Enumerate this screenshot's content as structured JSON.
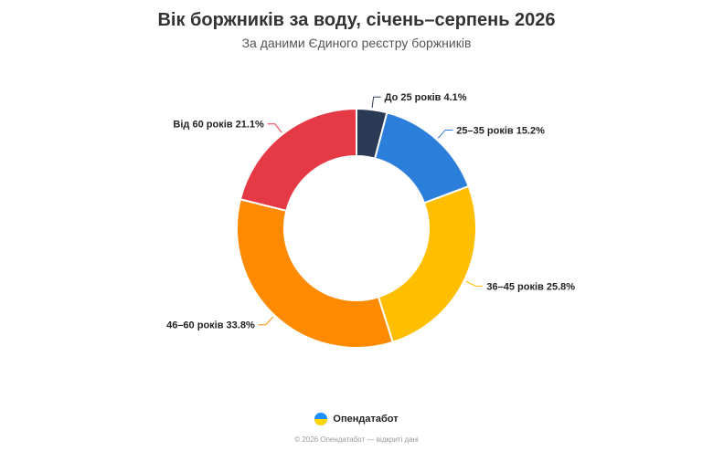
{
  "chart_data": {
    "type": "pie",
    "variant": "donut",
    "title": "Вік боржників за воду, січень–серпень 2026",
    "subtitle": "За даними Єдиного реєстру боржників",
    "legend": "none",
    "slices": [
      {
        "label": "До 25 років",
        "value": 4.1,
        "display": "4.1%",
        "color": "#2b3a55"
      },
      {
        "label": "25–35 років",
        "value": 15.2,
        "display": "15.2%",
        "color": "#2b7fda"
      },
      {
        "label": "36–45 років",
        "value": 25.8,
        "display": "25.8%",
        "color": "#ffbf00"
      },
      {
        "label": "46–60 років",
        "value": 33.8,
        "display": "33.8%",
        "color": "#fd8a00"
      },
      {
        "label": "Від 60 років",
        "value": 21.1,
        "display": "21.1%",
        "color": "#e63946"
      }
    ]
  },
  "brand": {
    "name": "Опендатабот",
    "logo_icon": "opendatabot-logo-icon",
    "logo_colors": [
      "#1e90ff",
      "#ffd600"
    ]
  },
  "footer": {
    "note": "© 2026 Опендатабот — відкриті дані"
  }
}
